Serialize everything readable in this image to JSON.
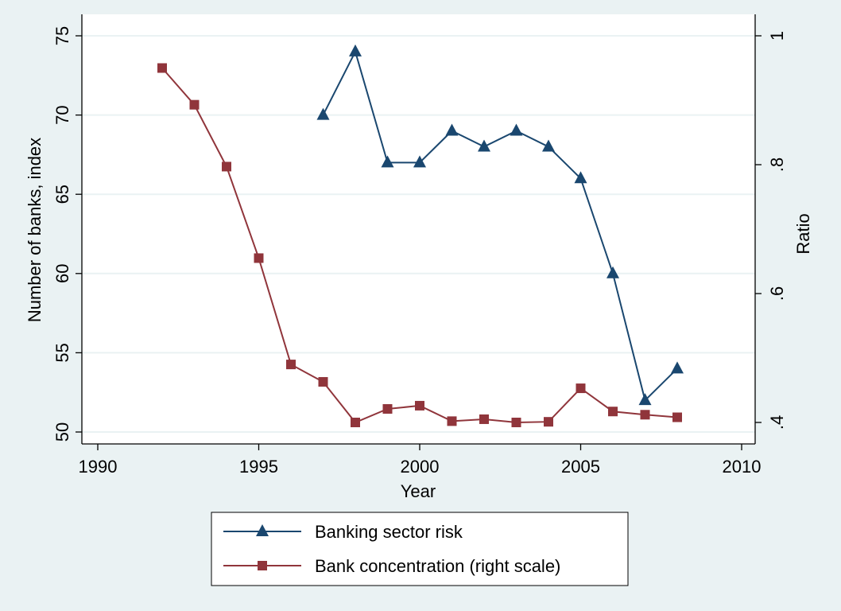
{
  "chart_data": {
    "type": "line",
    "title": "",
    "xlabel": "Year",
    "ylabel_left": "Number of banks, index",
    "ylabel_right": "Ratio",
    "xlim": [
      1990,
      2010
    ],
    "ylim_left": [
      50,
      75
    ],
    "ylim_right": [
      0.4,
      1.0
    ],
    "x_ticks": [
      {
        "value": 1990,
        "label": "1990"
      },
      {
        "value": 1995,
        "label": "1995"
      },
      {
        "value": 2000,
        "label": "2000"
      },
      {
        "value": 2005,
        "label": "2005"
      },
      {
        "value": 2010,
        "label": "2010"
      }
    ],
    "y_ticks_left": [
      {
        "value": 50,
        "label": "50"
      },
      {
        "value": 55,
        "label": "55"
      },
      {
        "value": 60,
        "label": "60"
      },
      {
        "value": 65,
        "label": "65"
      },
      {
        "value": 70,
        "label": "70"
      },
      {
        "value": 75,
        "label": "75"
      }
    ],
    "y_ticks_right": [
      {
        "value": 0.4,
        "label": ".4"
      },
      {
        "value": 0.6,
        "label": ".6"
      },
      {
        "value": 0.8,
        "label": ".8"
      },
      {
        "value": 1.0,
        "label": "1"
      }
    ],
    "grid": true,
    "legend_position": "bottom",
    "series": [
      {
        "name": "Banking sector risk",
        "axis": "left",
        "color": "#1a476f",
        "marker": "triangle",
        "x": [
          1997,
          1998,
          1999,
          2000,
          2001,
          2002,
          2003,
          2004,
          2005,
          2006,
          2007,
          2008
        ],
        "y": [
          70,
          74,
          67,
          67,
          69,
          68,
          69,
          68,
          66,
          60,
          52,
          54
        ]
      },
      {
        "name": "Bank concentration (right scale)",
        "axis": "right",
        "color": "#90353b",
        "marker": "square",
        "x": [
          1992,
          1993,
          1994,
          1995,
          1996,
          1997,
          1998,
          1999,
          2000,
          2001,
          2002,
          2003,
          2004,
          2005,
          2006,
          2007,
          2008
        ],
        "y": [
          0.95,
          0.893,
          0.797,
          0.655,
          0.49,
          0.463,
          0.4,
          0.421,
          0.426,
          0.402,
          0.405,
          0.4,
          0.401,
          0.453,
          0.417,
          0.412,
          0.408
        ]
      }
    ]
  },
  "colors": {
    "page_background": "#eaf2f3",
    "plot_background": "#ffffff",
    "grid": "#eaf2f3"
  }
}
